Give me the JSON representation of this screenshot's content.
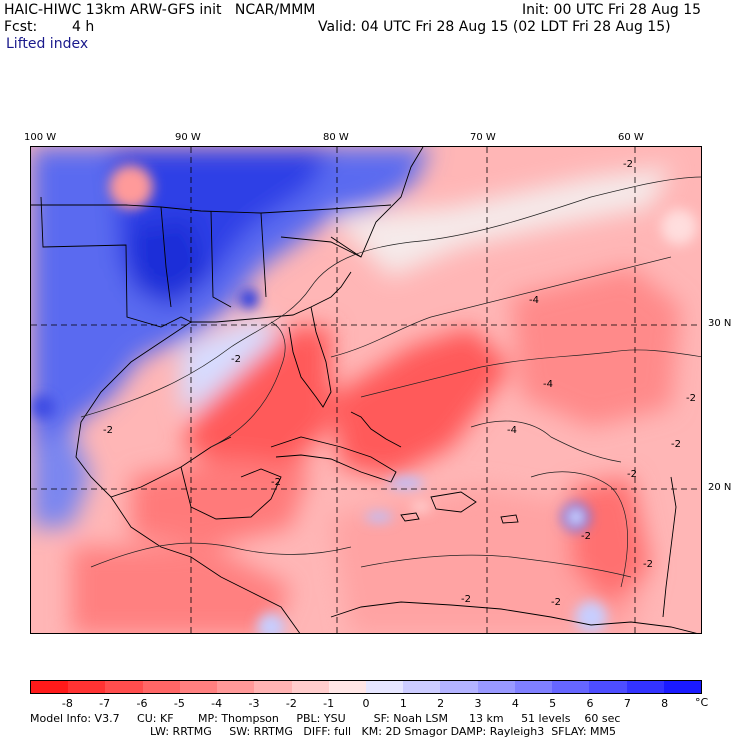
{
  "header": {
    "model_line": "HAIC-HIWC 13km ARW-GFS init   NCAR/MMM",
    "init_line": "Init: 00 UTC Fri 28 Aug 15",
    "fcst_label": "Fcst:",
    "fcst_value": "4 h",
    "valid_line": "Valid: 04 UTC Fri 28 Aug 15 (02 LDT Fri 28 Aug 15)",
    "field_name": "Lifted index"
  },
  "map": {
    "lon_labels": [
      "100 W",
      "90 W",
      "80 W",
      "70 W",
      "60 W"
    ],
    "lat_labels": [
      "30 N",
      "20 N"
    ],
    "contour_labels": [
      "-2",
      "-2",
      "-2",
      "-2",
      "-2",
      "-2",
      "-2",
      "-2",
      "-4",
      "-4",
      "-4",
      "-2",
      "-2",
      "-2"
    ]
  },
  "colorbar": {
    "ticks": [
      "-8",
      "-7",
      "-6",
      "-5",
      "-4",
      "-3",
      "-2",
      "-1",
      "0",
      "1",
      "2",
      "3",
      "4",
      "5",
      "6",
      "7",
      "8"
    ],
    "unit": "°C",
    "colors": [
      "#ff1a1a",
      "#ff3333",
      "#ff4d4d",
      "#ff6666",
      "#ff8080",
      "#ff9999",
      "#ffb3b3",
      "#ffcccc",
      "#ffe6e6",
      "#e6e6ff",
      "#ccccff",
      "#b3b3ff",
      "#9999ff",
      "#8080ff",
      "#6666ff",
      "#4d4dff",
      "#3333ff",
      "#1a1aff"
    ]
  },
  "footer": {
    "line1": "Model Info: V3.7     CU: KF       MP: Thompson     PBL: YSU        SF: Noah LSM      13 km     51 levels    60 sec",
    "line2": "LW: RRTMG     SW: RRTMG   DIFF: full   KM: 2D Smagor DAMP: Rayleigh3  SFLAY: MM5"
  }
}
